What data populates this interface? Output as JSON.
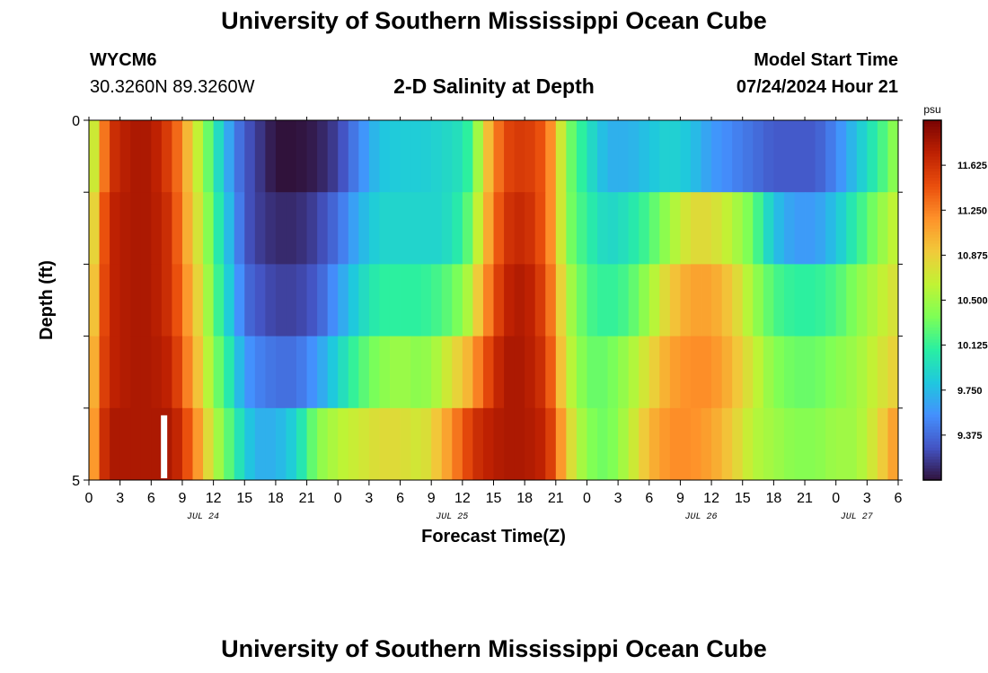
{
  "header": {
    "title": "University of Southern Mississippi Ocean Cube",
    "station_id": "WYCM6",
    "station_coords": "30.3260N  89.3260W",
    "plot_title": "2-D Salinity at Depth",
    "model_start_label": "Model Start Time",
    "model_start_value": "07/24/2024 Hour 21"
  },
  "footer": {
    "title": "University of Southern Mississippi Ocean Cube"
  },
  "chart_data": {
    "type": "heatmap",
    "title": "2-D Salinity at Depth",
    "xlabel": "Forecast Time(Z)",
    "ylabel": "Depth (ft)",
    "x_units": "forecast hour from 07/24 00Z",
    "x_range": [
      0,
      78
    ],
    "y_range": [
      0,
      5
    ],
    "y_ticks": [
      "0",
      "5"
    ],
    "x_tick_labels": [
      "0",
      "3",
      "6",
      "9",
      "12",
      "15",
      "18",
      "21",
      "0",
      "3",
      "6",
      "9",
      "12",
      "15",
      "18",
      "21",
      "0",
      "3",
      "6",
      "9",
      "12",
      "15",
      "18",
      "21",
      "0",
      "3",
      "6"
    ],
    "date_labels": [
      {
        "text": "JUL 24",
        "hour": 11
      },
      {
        "text": "JUL 25",
        "hour": 35
      },
      {
        "text": "JUL 26",
        "hour": 59
      },
      {
        "text": "JUL 27",
        "hour": 74
      }
    ],
    "now_marker_hour": 7.2,
    "colorbar": {
      "unit": "psu",
      "range": [
        9.0,
        12.0
      ],
      "tick_values": [
        9.375,
        9.75,
        10.125,
        10.5,
        10.875,
        11.25,
        11.625
      ],
      "tick_labels": [
        "9.375",
        "9.750",
        "10.125",
        "10.500",
        "10.875",
        "11.250",
        "11.625"
      ],
      "colors": [
        "#30123b",
        "#4454c4",
        "#4490fe",
        "#1fc8de",
        "#29efa2",
        "#7dff56",
        "#c1f334",
        "#f1ca3a",
        "#fe922a",
        "#ea4f0d",
        "#be2102",
        "#7a0403"
      ]
    },
    "depth_layers": [
      0.5,
      1.5,
      2.5,
      3.5,
      4.5
    ],
    "salinity_keyframes": {
      "hours": [
        0,
        1,
        2,
        4,
        6,
        8,
        9,
        10,
        11,
        12,
        13,
        14,
        15,
        16,
        18,
        20,
        22,
        24,
        26,
        28,
        30,
        32,
        34,
        35,
        36,
        37,
        38,
        40,
        42,
        44,
        45,
        46,
        48,
        50,
        52,
        54,
        56,
        58,
        60,
        62,
        64,
        66,
        68,
        70,
        72,
        74,
        76,
        78
      ],
      "layers": [
        [
          10.4,
          11.0,
          11.6,
          11.8,
          11.8,
          11.5,
          11.2,
          10.8,
          10.5,
          10.1,
          9.8,
          9.5,
          9.3,
          9.2,
          9.0,
          9.0,
          9.05,
          9.2,
          9.5,
          9.8,
          9.85,
          9.85,
          9.9,
          9.95,
          10.0,
          10.2,
          10.8,
          11.5,
          11.6,
          11.4,
          11.0,
          10.4,
          10.0,
          9.7,
          9.7,
          9.8,
          9.9,
          9.8,
          9.6,
          9.5,
          9.4,
          9.3,
          9.3,
          9.3,
          9.5,
          9.8,
          10.1,
          10.5
        ],
        [
          10.5,
          11.2,
          11.7,
          11.8,
          11.8,
          11.6,
          11.2,
          10.9,
          10.6,
          10.2,
          9.9,
          9.6,
          9.3,
          9.2,
          9.1,
          9.1,
          9.2,
          9.4,
          9.7,
          9.9,
          9.9,
          9.9,
          9.9,
          10.0,
          10.1,
          10.4,
          10.9,
          11.6,
          11.7,
          11.4,
          11.0,
          10.4,
          10.1,
          9.9,
          10.0,
          10.2,
          10.5,
          10.8,
          10.8,
          10.6,
          10.3,
          9.8,
          9.6,
          9.6,
          9.8,
          10.1,
          10.4,
          10.7
        ],
        [
          10.6,
          11.3,
          11.7,
          11.8,
          11.8,
          11.6,
          11.3,
          11.0,
          10.7,
          10.3,
          10.0,
          9.7,
          9.4,
          9.3,
          9.2,
          9.2,
          9.3,
          9.6,
          9.9,
          10.1,
          10.1,
          10.1,
          10.2,
          10.3,
          10.4,
          10.7,
          11.1,
          11.7,
          11.8,
          11.5,
          11.1,
          10.6,
          10.2,
          10.1,
          10.2,
          10.5,
          10.9,
          11.1,
          11.1,
          10.9,
          10.5,
          10.2,
          10.1,
          10.1,
          10.2,
          10.4,
          10.6,
          10.8
        ],
        [
          10.7,
          11.4,
          11.7,
          11.8,
          11.8,
          11.7,
          11.4,
          11.1,
          10.8,
          10.4,
          10.2,
          9.9,
          9.6,
          9.5,
          9.4,
          9.4,
          9.6,
          9.9,
          10.2,
          10.4,
          10.5,
          10.4,
          10.6,
          10.8,
          10.9,
          11.1,
          11.4,
          11.8,
          11.8,
          11.6,
          11.2,
          10.7,
          10.3,
          10.3,
          10.5,
          10.8,
          11.1,
          11.2,
          11.2,
          11.0,
          10.7,
          10.4,
          10.3,
          10.3,
          10.4,
          10.5,
          10.7,
          10.9
        ],
        [
          10.8,
          11.5,
          11.8,
          11.8,
          11.8,
          11.8,
          11.6,
          11.3,
          11.0,
          10.6,
          10.4,
          10.1,
          9.9,
          9.7,
          9.7,
          9.9,
          10.4,
          10.6,
          10.7,
          10.8,
          10.8,
          10.7,
          11.0,
          11.2,
          11.4,
          11.6,
          11.7,
          11.8,
          11.8,
          11.7,
          11.4,
          10.9,
          10.4,
          10.3,
          10.6,
          11.0,
          11.2,
          11.2,
          11.1,
          10.9,
          10.6,
          10.5,
          10.4,
          10.4,
          10.5,
          10.5,
          10.8,
          11.2
        ]
      ]
    }
  }
}
